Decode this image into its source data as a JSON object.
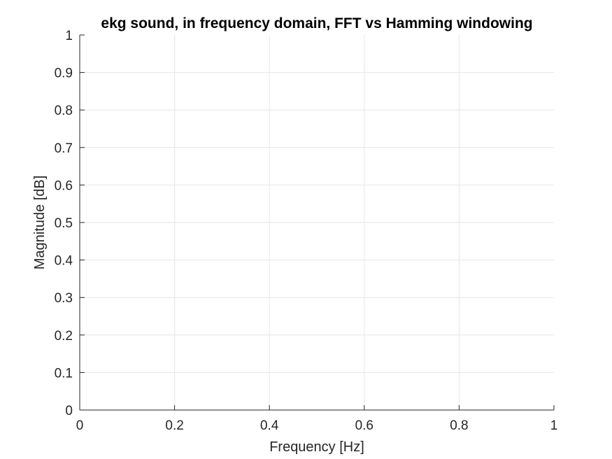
{
  "chart_data": {
    "type": "line",
    "title": "ekg sound, in frequency domain, FFT vs Hamming windowing",
    "xlabel": "Frequency [Hz]",
    "ylabel": "Magnitude [dB]",
    "xlim": [
      0,
      1
    ],
    "ylim": [
      0,
      1
    ],
    "xticks": [
      0,
      0.2,
      0.4,
      0.6,
      0.8,
      1
    ],
    "xtick_labels": [
      "0",
      "0.2",
      "0.4",
      "0.6",
      "0.8",
      "1"
    ],
    "yticks": [
      0,
      0.1,
      0.2,
      0.3,
      0.4,
      0.5,
      0.6,
      0.7,
      0.8,
      0.9,
      1
    ],
    "ytick_labels": [
      "0",
      "0.1",
      "0.2",
      "0.3",
      "0.4",
      "0.5",
      "0.6",
      "0.7",
      "0.8",
      "0.9",
      "1"
    ],
    "grid": true,
    "series": []
  },
  "colors": {
    "background": "#ffffff",
    "axis": "#262626",
    "grid": "#e6e6e6",
    "title": "#000000"
  }
}
